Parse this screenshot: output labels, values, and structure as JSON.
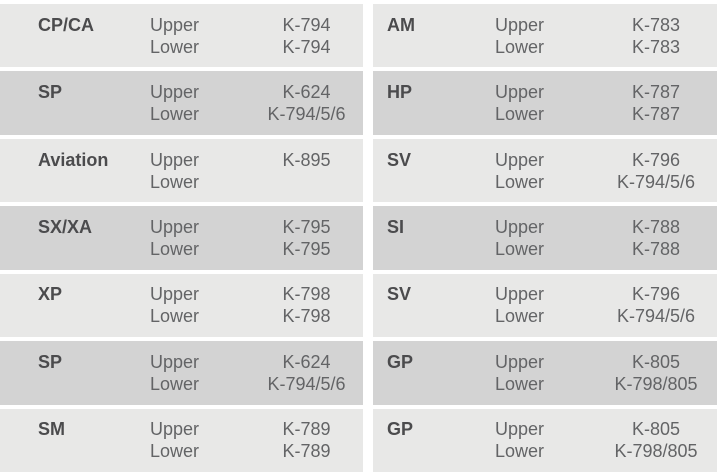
{
  "table": {
    "sub_labels": {
      "upper": "Upper",
      "lower": "Lower"
    },
    "columns": [
      {
        "rows": [
          {
            "label": "CP/CA",
            "upper": "K-794",
            "lower": "K-794"
          },
          {
            "label": "SP",
            "upper": "K-624",
            "lower": "K-794/5/6"
          },
          {
            "label": "Aviation",
            "upper": "K-895",
            "lower": ""
          },
          {
            "label": "SX/XA",
            "upper": "K-795",
            "lower": "K-795"
          },
          {
            "label": "XP",
            "upper": "K-798",
            "lower": "K-798"
          },
          {
            "label": "SP",
            "upper": "K-624",
            "lower": "K-794/5/6"
          },
          {
            "label": "SM",
            "upper": "K-789",
            "lower": "K-789"
          }
        ]
      },
      {
        "rows": [
          {
            "label": "AM",
            "upper": "K-783",
            "lower": "K-783"
          },
          {
            "label": "HP",
            "upper": "K-787",
            "lower": "K-787"
          },
          {
            "label": "SV",
            "upper": "K-796",
            "lower": "K-794/5/6"
          },
          {
            "label": "SI",
            "upper": "K-788",
            "lower": "K-788"
          },
          {
            "label": "SV",
            "upper": "K-796",
            "lower": "K-794/5/6"
          },
          {
            "label": "GP",
            "upper": "K-805",
            "lower": "K-798/805"
          },
          {
            "label": "GP",
            "upper": "K-805",
            "lower": "K-798/805"
          }
        ]
      }
    ]
  },
  "colors": {
    "background": "#ffffff",
    "row_light": "#e8e8e7",
    "row_dark": "#d3d3d3",
    "label_text": "#4b4b4d",
    "body_text": "#636466"
  }
}
